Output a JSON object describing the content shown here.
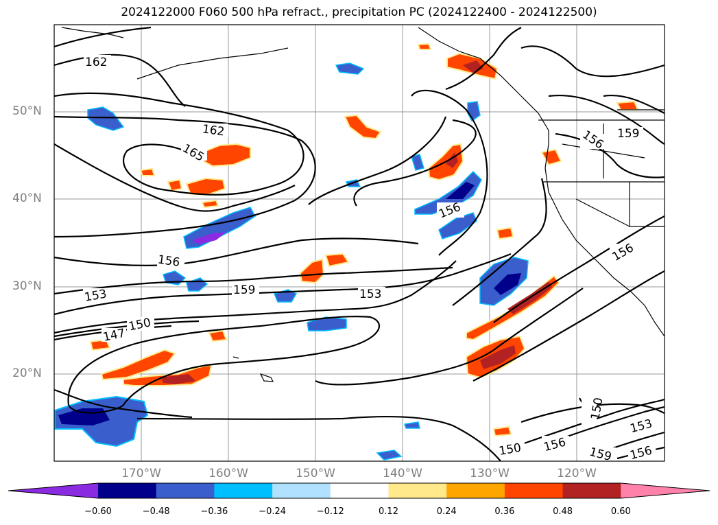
{
  "title": "2024122000 F060 500 hPa refract., precipitation PC (2024122400 - 2024122500)",
  "lat_labels": [
    "50°N",
    "40°N",
    "30°N",
    "20°N"
  ],
  "lon_labels": [
    "170°W",
    "160°W",
    "150°W",
    "140°W",
    "130°W",
    "120°W"
  ],
  "colorbar": {
    "colors": [
      "#8a2be2",
      "#00008b",
      "#3a5fcd",
      "#00bfff",
      "#b0e2ff",
      "#ffffff",
      "#ffe98a",
      "#ffa500",
      "#ff4500",
      "#b22222",
      "#ff82ab"
    ],
    "tick_labels": [
      "−0.60",
      "−0.48",
      "−0.36",
      "−0.24",
      "−0.12",
      "0.12",
      "0.24",
      "0.36",
      "0.48",
      "0.60"
    ]
  },
  "contour_labels": [
    "162",
    "162",
    "165",
    "156",
    "153",
    "159",
    "147",
    "150",
    "153",
    "156",
    "156",
    "156",
    "159",
    "156",
    "150",
    "150",
    "156",
    "159",
    "156",
    "153"
  ],
  "gridlines": "on"
}
